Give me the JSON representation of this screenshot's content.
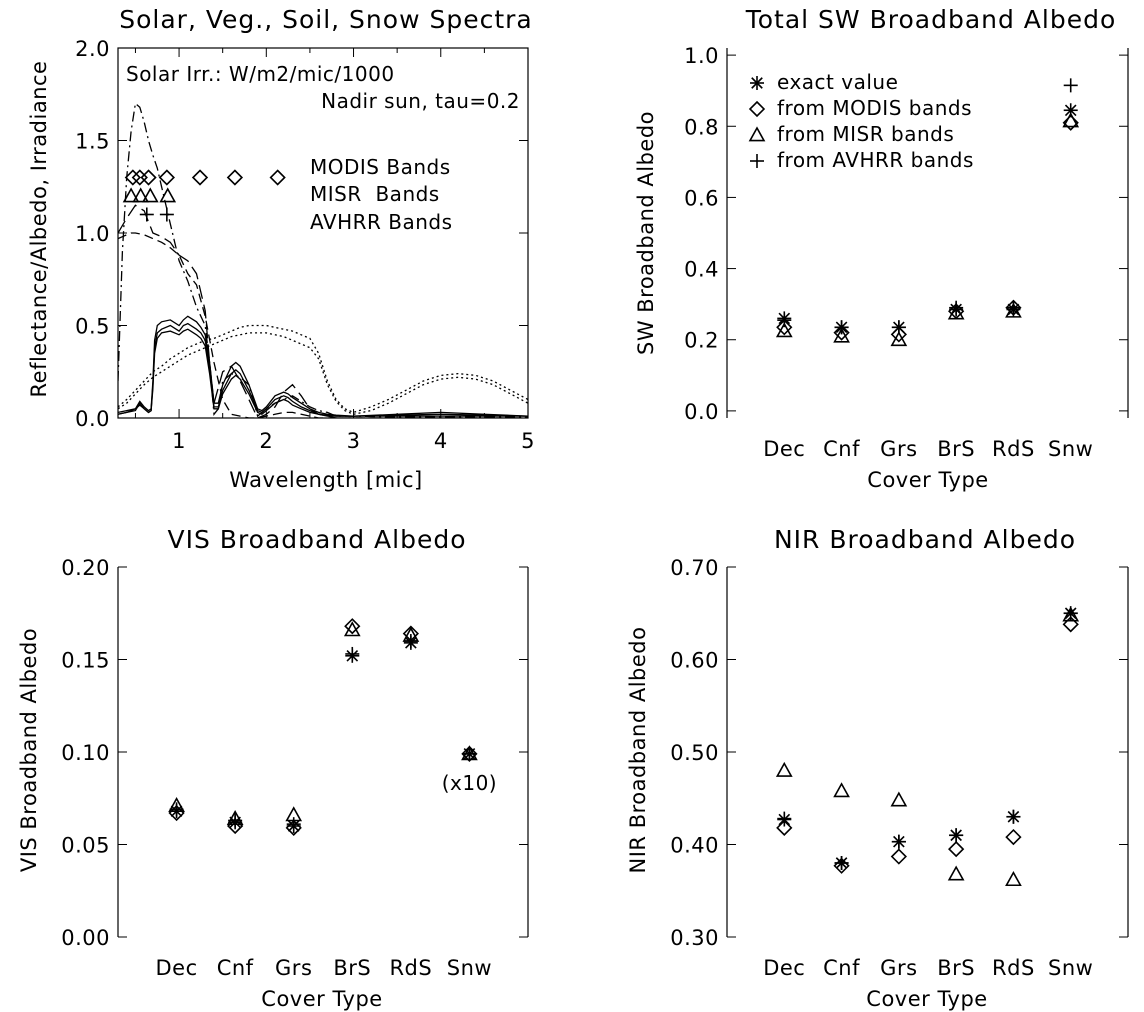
{
  "chart_data": [
    {
      "type": "line",
      "title": "Solar, Veg., Soil, Snow Spectra",
      "xlabel": "Wavelength [mic]",
      "ylabel": "Reflectance/Albedo, Irradiance",
      "xlim": [
        0.3,
        5
      ],
      "ylim": [
        0,
        2
      ],
      "xticks": [
        1,
        2,
        3,
        4,
        5
      ],
      "yticks": [
        0.0,
        0.5,
        1.0,
        1.5,
        2.0
      ],
      "xtick_labels": [
        "1",
        "2",
        "3",
        "4",
        "5"
      ],
      "ytick_labels": [
        "0.0",
        "0.5",
        "1.0",
        "1.5",
        "2.0"
      ],
      "annotations": [
        "Solar Irr.: W/m2/mic/1000",
        "Nadir sun, tau=0.2"
      ],
      "band_labels": [
        "MODIS Bands",
        "MISR  Bands",
        "AVHRR Bands"
      ],
      "modis_bands": [
        0.47,
        0.55,
        0.65,
        0.86,
        1.24,
        1.64,
        2.13
      ],
      "misr_bands": [
        0.45,
        0.56,
        0.67,
        0.87
      ],
      "avhrr_bands": [
        0.63,
        0.86
      ],
      "band_marker_levels": {
        "modis": 1.3,
        "misr": 1.2,
        "avhrr": 1.1
      },
      "series": [
        {
          "style": "dashdot",
          "x": [
            0.3,
            0.35,
            0.4,
            0.45,
            0.5,
            0.55,
            0.6,
            0.65,
            0.7,
            0.75,
            0.8,
            0.9,
            1.0,
            1.1,
            1.2,
            1.3,
            1.35,
            1.4,
            1.45,
            1.5,
            1.6,
            1.7,
            1.8,
            1.85,
            1.9,
            2.0,
            2.1,
            2.2,
            2.3,
            2.4,
            2.5,
            2.6,
            2.7,
            2.8,
            3.0,
            3.5,
            4.0,
            4.5,
            5.0
          ],
          "y": [
            0.2,
            0.9,
            1.3,
            1.55,
            1.7,
            1.68,
            1.6,
            1.5,
            1.42,
            1.35,
            1.25,
            1.05,
            0.85,
            0.74,
            0.6,
            0.5,
            0.3,
            0.02,
            0.05,
            0.2,
            0.24,
            0.22,
            0.18,
            0.1,
            0.01,
            0.05,
            0.08,
            0.1,
            0.12,
            0.09,
            0.06,
            0.04,
            0.03,
            0.01,
            0.01,
            0.005,
            0.005,
            0.005,
            0.005
          ]
        },
        {
          "style": "longdash",
          "x": [
            0.3,
            0.4,
            0.5,
            0.6,
            0.7,
            0.8,
            0.9,
            1.0,
            1.1,
            1.2,
            1.3,
            1.35,
            1.4,
            1.5,
            1.6,
            1.7,
            1.8,
            1.9,
            2.0,
            2.1,
            2.2,
            2.3,
            2.4,
            2.5,
            2.6,
            2.7,
            2.8,
            3.0,
            4.0,
            5.0
          ],
          "y": [
            1.0,
            1.08,
            1.15,
            1.12,
            1.0,
            0.98,
            0.95,
            0.88,
            0.85,
            0.78,
            0.58,
            0.3,
            0.08,
            0.25,
            0.28,
            0.2,
            0.1,
            0.0,
            0.02,
            0.06,
            0.14,
            0.18,
            0.12,
            0.05,
            0.02,
            0.01,
            0.0,
            0.0,
            0.0,
            0.0
          ]
        },
        {
          "style": "dashed",
          "x": [
            0.3,
            0.35,
            0.4,
            0.45,
            0.5,
            0.6,
            0.7,
            0.8,
            0.9,
            1.0,
            1.1,
            1.2,
            1.3,
            1.4,
            1.5,
            1.6,
            1.7,
            1.8,
            1.9,
            2.0,
            2.1,
            2.2,
            2.3,
            2.4,
            2.5,
            2.6,
            2.7,
            2.8,
            3.0,
            4.0,
            5.0
          ],
          "y": [
            0.97,
            0.98,
            0.99,
            1.0,
            1.0,
            0.99,
            0.97,
            0.95,
            0.92,
            0.88,
            0.78,
            0.72,
            0.55,
            0.3,
            0.1,
            0.02,
            0.01,
            0.0,
            0.0,
            0.01,
            0.02,
            0.03,
            0.03,
            0.02,
            0.01,
            0.0,
            0.0,
            0.0,
            0.0,
            0.0,
            0.0
          ]
        },
        {
          "style": "solid",
          "x": [
            0.3,
            0.4,
            0.5,
            0.55,
            0.6,
            0.65,
            0.68,
            0.7,
            0.72,
            0.75,
            0.8,
            0.9,
            1.0,
            1.05,
            1.1,
            1.2,
            1.25,
            1.3,
            1.35,
            1.4,
            1.45,
            1.5,
            1.6,
            1.65,
            1.7,
            1.8,
            1.9,
            1.95,
            2.0,
            2.1,
            2.2,
            2.25,
            2.3,
            2.4,
            2.5,
            2.6,
            2.7,
            2.8,
            3.0,
            3.5,
            4.0,
            4.5,
            5.0
          ],
          "y": [
            0.03,
            0.04,
            0.05,
            0.09,
            0.06,
            0.04,
            0.05,
            0.2,
            0.42,
            0.5,
            0.52,
            0.53,
            0.5,
            0.53,
            0.55,
            0.52,
            0.49,
            0.45,
            0.3,
            0.08,
            0.08,
            0.18,
            0.28,
            0.3,
            0.28,
            0.18,
            0.05,
            0.04,
            0.06,
            0.12,
            0.14,
            0.13,
            0.11,
            0.08,
            0.05,
            0.03,
            0.02,
            0.015,
            0.01,
            0.02,
            0.03,
            0.02,
            0.01
          ]
        },
        {
          "style": "solid",
          "x": [
            0.3,
            0.4,
            0.5,
            0.55,
            0.6,
            0.65,
            0.68,
            0.7,
            0.72,
            0.75,
            0.8,
            0.9,
            1.0,
            1.05,
            1.1,
            1.2,
            1.25,
            1.3,
            1.35,
            1.4,
            1.45,
            1.5,
            1.6,
            1.65,
            1.7,
            1.8,
            1.9,
            1.95,
            2.0,
            2.1,
            2.2,
            2.25,
            2.3,
            2.4,
            2.5,
            2.6,
            2.7,
            2.8,
            3.0,
            3.5,
            4.0,
            4.5,
            5.0
          ],
          "y": [
            0.02,
            0.03,
            0.04,
            0.08,
            0.05,
            0.03,
            0.04,
            0.18,
            0.38,
            0.46,
            0.48,
            0.5,
            0.47,
            0.5,
            0.51,
            0.48,
            0.46,
            0.42,
            0.27,
            0.06,
            0.06,
            0.15,
            0.24,
            0.26,
            0.24,
            0.15,
            0.04,
            0.03,
            0.05,
            0.1,
            0.12,
            0.11,
            0.09,
            0.06,
            0.04,
            0.02,
            0.015,
            0.01,
            0.01,
            0.015,
            0.02,
            0.015,
            0.01
          ]
        },
        {
          "style": "solid",
          "x": [
            0.3,
            0.4,
            0.5,
            0.55,
            0.6,
            0.65,
            0.68,
            0.7,
            0.72,
            0.75,
            0.8,
            0.9,
            1.0,
            1.05,
            1.1,
            1.2,
            1.25,
            1.3,
            1.35,
            1.4,
            1.45,
            1.5,
            1.6,
            1.65,
            1.7,
            1.8,
            1.9,
            1.95,
            2.0,
            2.1,
            2.2,
            2.25,
            2.3,
            2.4,
            2.5,
            2.6,
            2.7,
            2.8,
            3.0,
            3.5,
            4.0,
            4.5,
            5.0
          ],
          "y": [
            0.02,
            0.03,
            0.05,
            0.07,
            0.05,
            0.03,
            0.04,
            0.16,
            0.35,
            0.43,
            0.46,
            0.47,
            0.45,
            0.47,
            0.48,
            0.45,
            0.43,
            0.39,
            0.24,
            0.05,
            0.05,
            0.13,
            0.21,
            0.23,
            0.21,
            0.13,
            0.03,
            0.02,
            0.04,
            0.08,
            0.1,
            0.09,
            0.07,
            0.05,
            0.03,
            0.02,
            0.01,
            0.01,
            0.01,
            0.01,
            0.01,
            0.01,
            0.01
          ]
        },
        {
          "style": "dotted",
          "x": [
            0.3,
            0.4,
            0.5,
            0.6,
            0.7,
            0.8,
            0.9,
            1.0,
            1.1,
            1.2,
            1.3,
            1.4,
            1.5,
            1.6,
            1.7,
            1.8,
            1.9,
            2.0,
            2.1,
            2.2,
            2.3,
            2.4,
            2.5,
            2.6,
            2.7,
            2.8,
            2.9,
            3.0,
            3.2,
            3.4,
            3.6,
            3.8,
            4.0,
            4.2,
            4.4,
            4.6,
            4.8,
            5.0
          ],
          "y": [
            0.06,
            0.1,
            0.15,
            0.2,
            0.25,
            0.28,
            0.32,
            0.35,
            0.38,
            0.4,
            0.42,
            0.43,
            0.45,
            0.47,
            0.49,
            0.5,
            0.5,
            0.5,
            0.49,
            0.48,
            0.47,
            0.45,
            0.43,
            0.35,
            0.2,
            0.1,
            0.05,
            0.03,
            0.06,
            0.1,
            0.15,
            0.2,
            0.23,
            0.24,
            0.23,
            0.2,
            0.15,
            0.1
          ]
        },
        {
          "style": "dotted",
          "x": [
            0.3,
            0.4,
            0.5,
            0.6,
            0.7,
            0.8,
            0.9,
            1.0,
            1.1,
            1.2,
            1.3,
            1.4,
            1.5,
            1.6,
            1.7,
            1.8,
            1.9,
            2.0,
            2.1,
            2.2,
            2.3,
            2.4,
            2.5,
            2.6,
            2.7,
            2.8,
            2.9,
            3.0,
            3.2,
            3.4,
            3.6,
            3.8,
            4.0,
            4.2,
            4.4,
            4.6,
            4.8,
            5.0
          ],
          "y": [
            0.05,
            0.08,
            0.13,
            0.18,
            0.22,
            0.25,
            0.28,
            0.31,
            0.34,
            0.36,
            0.38,
            0.4,
            0.42,
            0.44,
            0.45,
            0.46,
            0.46,
            0.46,
            0.45,
            0.44,
            0.42,
            0.4,
            0.38,
            0.32,
            0.18,
            0.09,
            0.04,
            0.02,
            0.04,
            0.08,
            0.13,
            0.18,
            0.21,
            0.22,
            0.21,
            0.18,
            0.13,
            0.08
          ]
        }
      ]
    },
    {
      "type": "scatter",
      "title": "Total SW Broadband Albedo",
      "xlabel": "Cover Type",
      "ylabel": "SW Broadband Albedo",
      "categories": [
        "Dec",
        "Cnf",
        "Grs",
        "BrS",
        "RdS",
        "Snw"
      ],
      "ylim": [
        -0.02,
        1.02
      ],
      "yticks": [
        0.0,
        0.2,
        0.4,
        0.6,
        0.8,
        1.0
      ],
      "ytick_labels": [
        "0.0",
        "0.2",
        "0.4",
        "0.6",
        "0.8",
        "1.0"
      ],
      "legend": [
        {
          "marker": "asterisk",
          "label": "exact value"
        },
        {
          "marker": "diamond",
          "label": "from MODIS bands"
        },
        {
          "marker": "triangle",
          "label": "from MISR bands"
        },
        {
          "marker": "plus",
          "label": "from AVHRR bands"
        }
      ],
      "series": [
        {
          "marker": "asterisk",
          "values": [
            0.26,
            0.235,
            0.235,
            0.285,
            0.285,
            0.845
          ]
        },
        {
          "marker": "diamond",
          "values": [
            0.235,
            0.22,
            0.215,
            0.28,
            0.29,
            0.81
          ]
        },
        {
          "marker": "triangle",
          "values": [
            0.225,
            0.21,
            0.2,
            0.275,
            0.28,
            0.815
          ]
        },
        {
          "marker": "plus",
          "values": [
            0.255,
            0.235,
            0.235,
            0.29,
            0.29,
            0.915
          ]
        }
      ]
    },
    {
      "type": "scatter",
      "title": "VIS Broadband Albedo",
      "xlabel": "Cover Type",
      "ylabel": "VIS Broadband Albedo",
      "categories": [
        "Dec",
        "Cnf",
        "Grs",
        "BrS",
        "RdS",
        "Snw"
      ],
      "ylim": [
        0.0,
        0.2
      ],
      "yticks": [
        0.0,
        0.05,
        0.1,
        0.15,
        0.2
      ],
      "ytick_labels": [
        "0.00",
        "0.05",
        "0.10",
        "0.15",
        "0.20"
      ],
      "annotation": "(x10)",
      "series": [
        {
          "marker": "asterisk",
          "values": [
            0.068,
            0.062,
            0.06,
            0.152,
            0.159,
            0.099
          ]
        },
        {
          "marker": "diamond",
          "values": [
            0.067,
            0.06,
            0.059,
            0.168,
            0.164,
            0.099
          ]
        },
        {
          "marker": "triangle",
          "values": [
            0.071,
            0.064,
            0.066,
            0.166,
            0.163,
            0.099
          ]
        },
        {
          "marker": "plus",
          "values": [
            0.069,
            0.063,
            0.061,
            0.153,
            0.16,
            0.099
          ]
        }
      ]
    },
    {
      "type": "scatter",
      "title": "NIR Broadband Albedo",
      "xlabel": "Cover Type",
      "ylabel": "NIR Broadband Albedo",
      "categories": [
        "Dec",
        "Cnf",
        "Grs",
        "BrS",
        "RdS",
        "Snw"
      ],
      "ylim": [
        0.3,
        0.7
      ],
      "yticks": [
        0.3,
        0.4,
        0.5,
        0.6,
        0.7
      ],
      "ytick_labels": [
        "0.30",
        "0.40",
        "0.50",
        "0.60",
        "0.70"
      ],
      "series": [
        {
          "marker": "asterisk",
          "values": [
            0.427,
            0.38,
            0.403,
            0.41,
            0.43,
            0.65
          ]
        },
        {
          "marker": "diamond",
          "values": [
            0.418,
            0.377,
            0.387,
            0.395,
            0.408,
            0.638
          ]
        },
        {
          "marker": "triangle",
          "values": [
            0.48,
            0.458,
            0.448,
            0.368,
            0.362,
            0.648
          ]
        },
        {
          "marker": "plus",
          "values": [
            0.428,
            0.38,
            0.403,
            0.41,
            0.43,
            0.65
          ]
        }
      ]
    }
  ]
}
